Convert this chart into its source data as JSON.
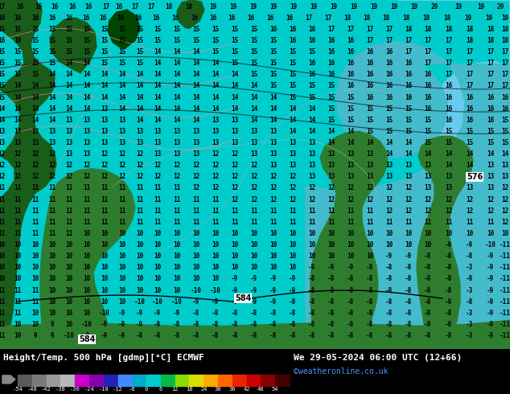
{
  "title_left": "Height/Temp. 500 hPa [gdmp][°C] ECMWF",
  "title_right": "We 29-05-2024 06:00 UTC (12+66)",
  "credit": "©weatheronline.co.uk",
  "map_bg": "#00d4d4",
  "land_dark": "#1a5c1a",
  "land_mid": "#2e7d2e",
  "land_bright": "#006400",
  "cyan_light": "#55d8f0",
  "cyan_pale": "#a0e8f8",
  "bar_bg": "#000000",
  "cbar_colors": [
    "#5a5a5a",
    "#7a7a7a",
    "#9a9a9a",
    "#b8b8b8",
    "#cc00cc",
    "#8800aa",
    "#2222bb",
    "#4488ff",
    "#00aacc",
    "#00cccc",
    "#00bb44",
    "#88dd00",
    "#dddd00",
    "#ffaa00",
    "#ff6600",
    "#ee2200",
    "#cc0000",
    "#880000",
    "#440000"
  ],
  "cbar_labels": [
    "-54",
    "-48",
    "-42",
    "-38",
    "-30",
    "-24",
    "-18",
    "-12",
    "-8",
    "0",
    "6",
    "12",
    "18",
    "24",
    "30",
    "36",
    "42",
    "48",
    "54"
  ]
}
